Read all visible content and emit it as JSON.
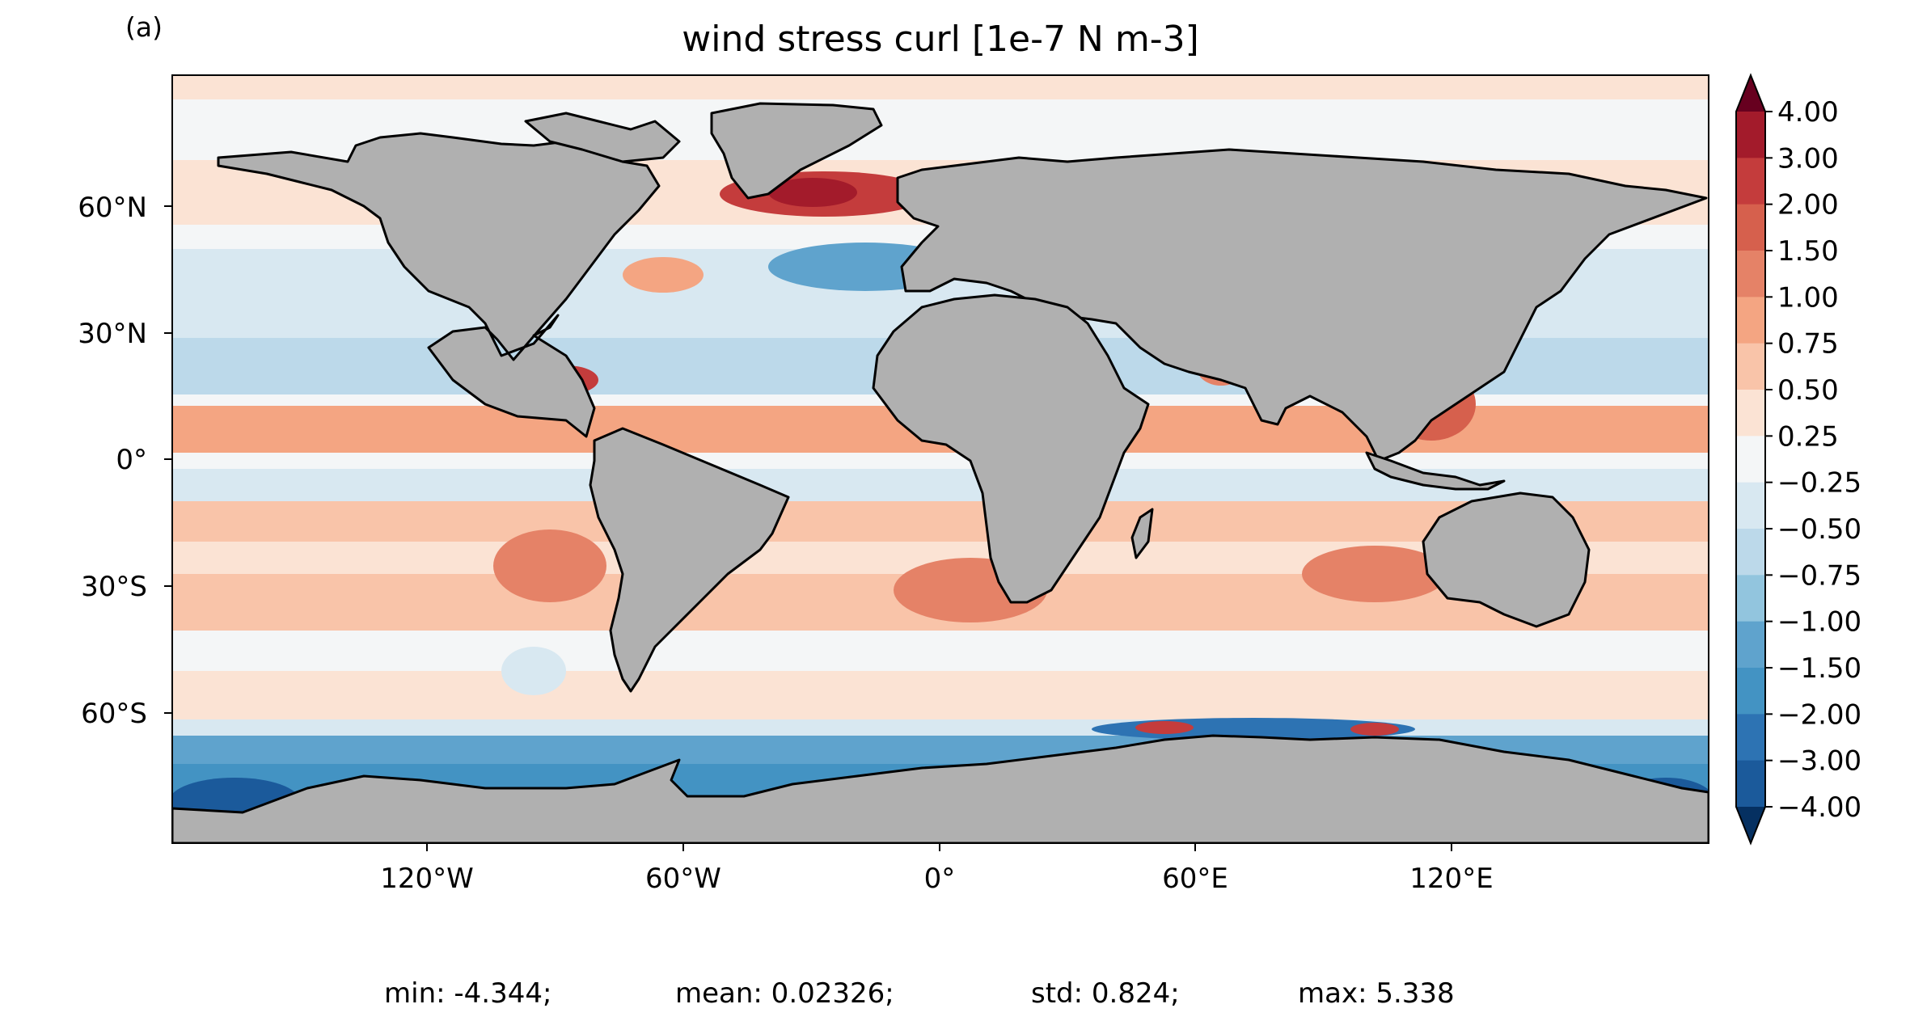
{
  "panel_label": "(a)",
  "title": "wind stress curl [1e-7 N m-3]",
  "lat_ticks": [
    "60°N",
    "30°N",
    "0°",
    "30°S",
    "60°S"
  ],
  "lon_ticks": [
    "120°W",
    "60°W",
    "0°",
    "60°E",
    "120°E"
  ],
  "colorbar": {
    "levels": [
      "4.00",
      "3.00",
      "2.00",
      "1.50",
      "1.00",
      "0.75",
      "0.50",
      "0.25",
      "−0.25",
      "−0.50",
      "−0.75",
      "−1.00",
      "−1.50",
      "−2.00",
      "−3.00",
      "−4.00"
    ],
    "colors": [
      "#7f1325",
      "#a31b2b",
      "#c43c3c",
      "#d6604d",
      "#e58267",
      "#f4a582",
      "#f9c4a9",
      "#fbe3d4",
      "#f4f6f7",
      "#d8e8f1",
      "#bcd9ea",
      "#92c5de",
      "#5fa3cd",
      "#4393c3",
      "#2d73b3",
      "#1b5a9b",
      "#0d3f70"
    ],
    "extend": "both"
  },
  "land_color": "#b0b0b0",
  "stats": {
    "min": "min: -4.344;",
    "mean": "mean: 0.02326;",
    "std": "std: 0.824;",
    "max": "max: 5.338"
  }
}
